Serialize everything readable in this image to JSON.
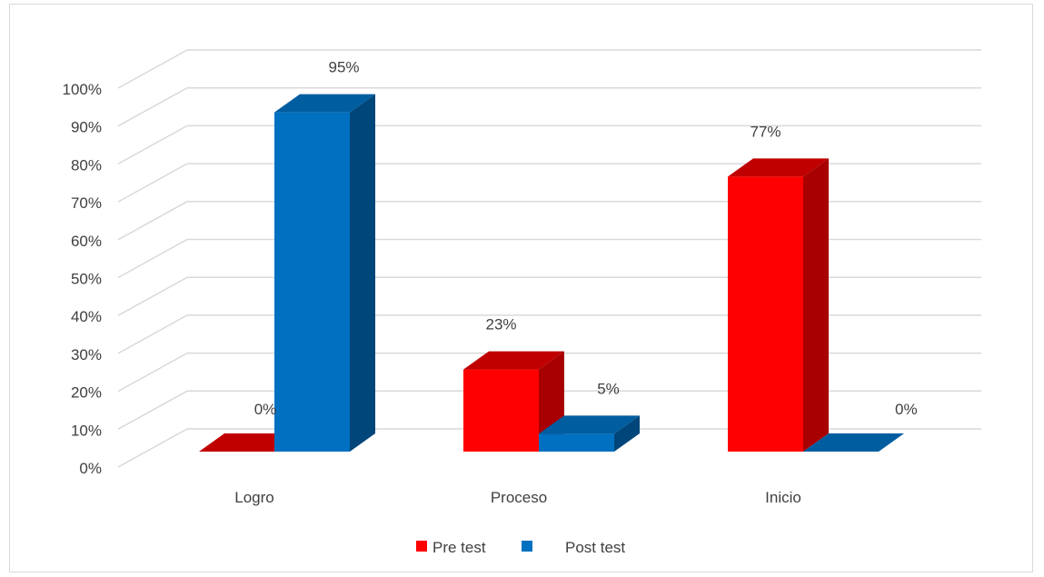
{
  "chart_data": {
    "type": "bar",
    "categories": [
      "Logro",
      "Proceso",
      "Inicio"
    ],
    "series": [
      {
        "name": "Pre test",
        "values": [
          0,
          23,
          77
        ],
        "labels": [
          "0%",
          "23%",
          "77%"
        ],
        "color": "#ff0000",
        "side_color": "#a80000",
        "top_color": "#c00000"
      },
      {
        "name": "Post test",
        "values": [
          95,
          5,
          0
        ],
        "labels": [
          "95%",
          "5%",
          "0%"
        ],
        "color": "#0070c0",
        "side_color": "#00467a",
        "top_color": "#005da0"
      }
    ],
    "ylim": [
      0,
      100
    ],
    "yticks": [
      "0%",
      "10%",
      "20%",
      "30%",
      "40%",
      "50%",
      "60%",
      "70%",
      "80%",
      "90%",
      "100%"
    ],
    "grid": true,
    "legend": "bottom",
    "gridline_color": "#d9d9d9"
  }
}
